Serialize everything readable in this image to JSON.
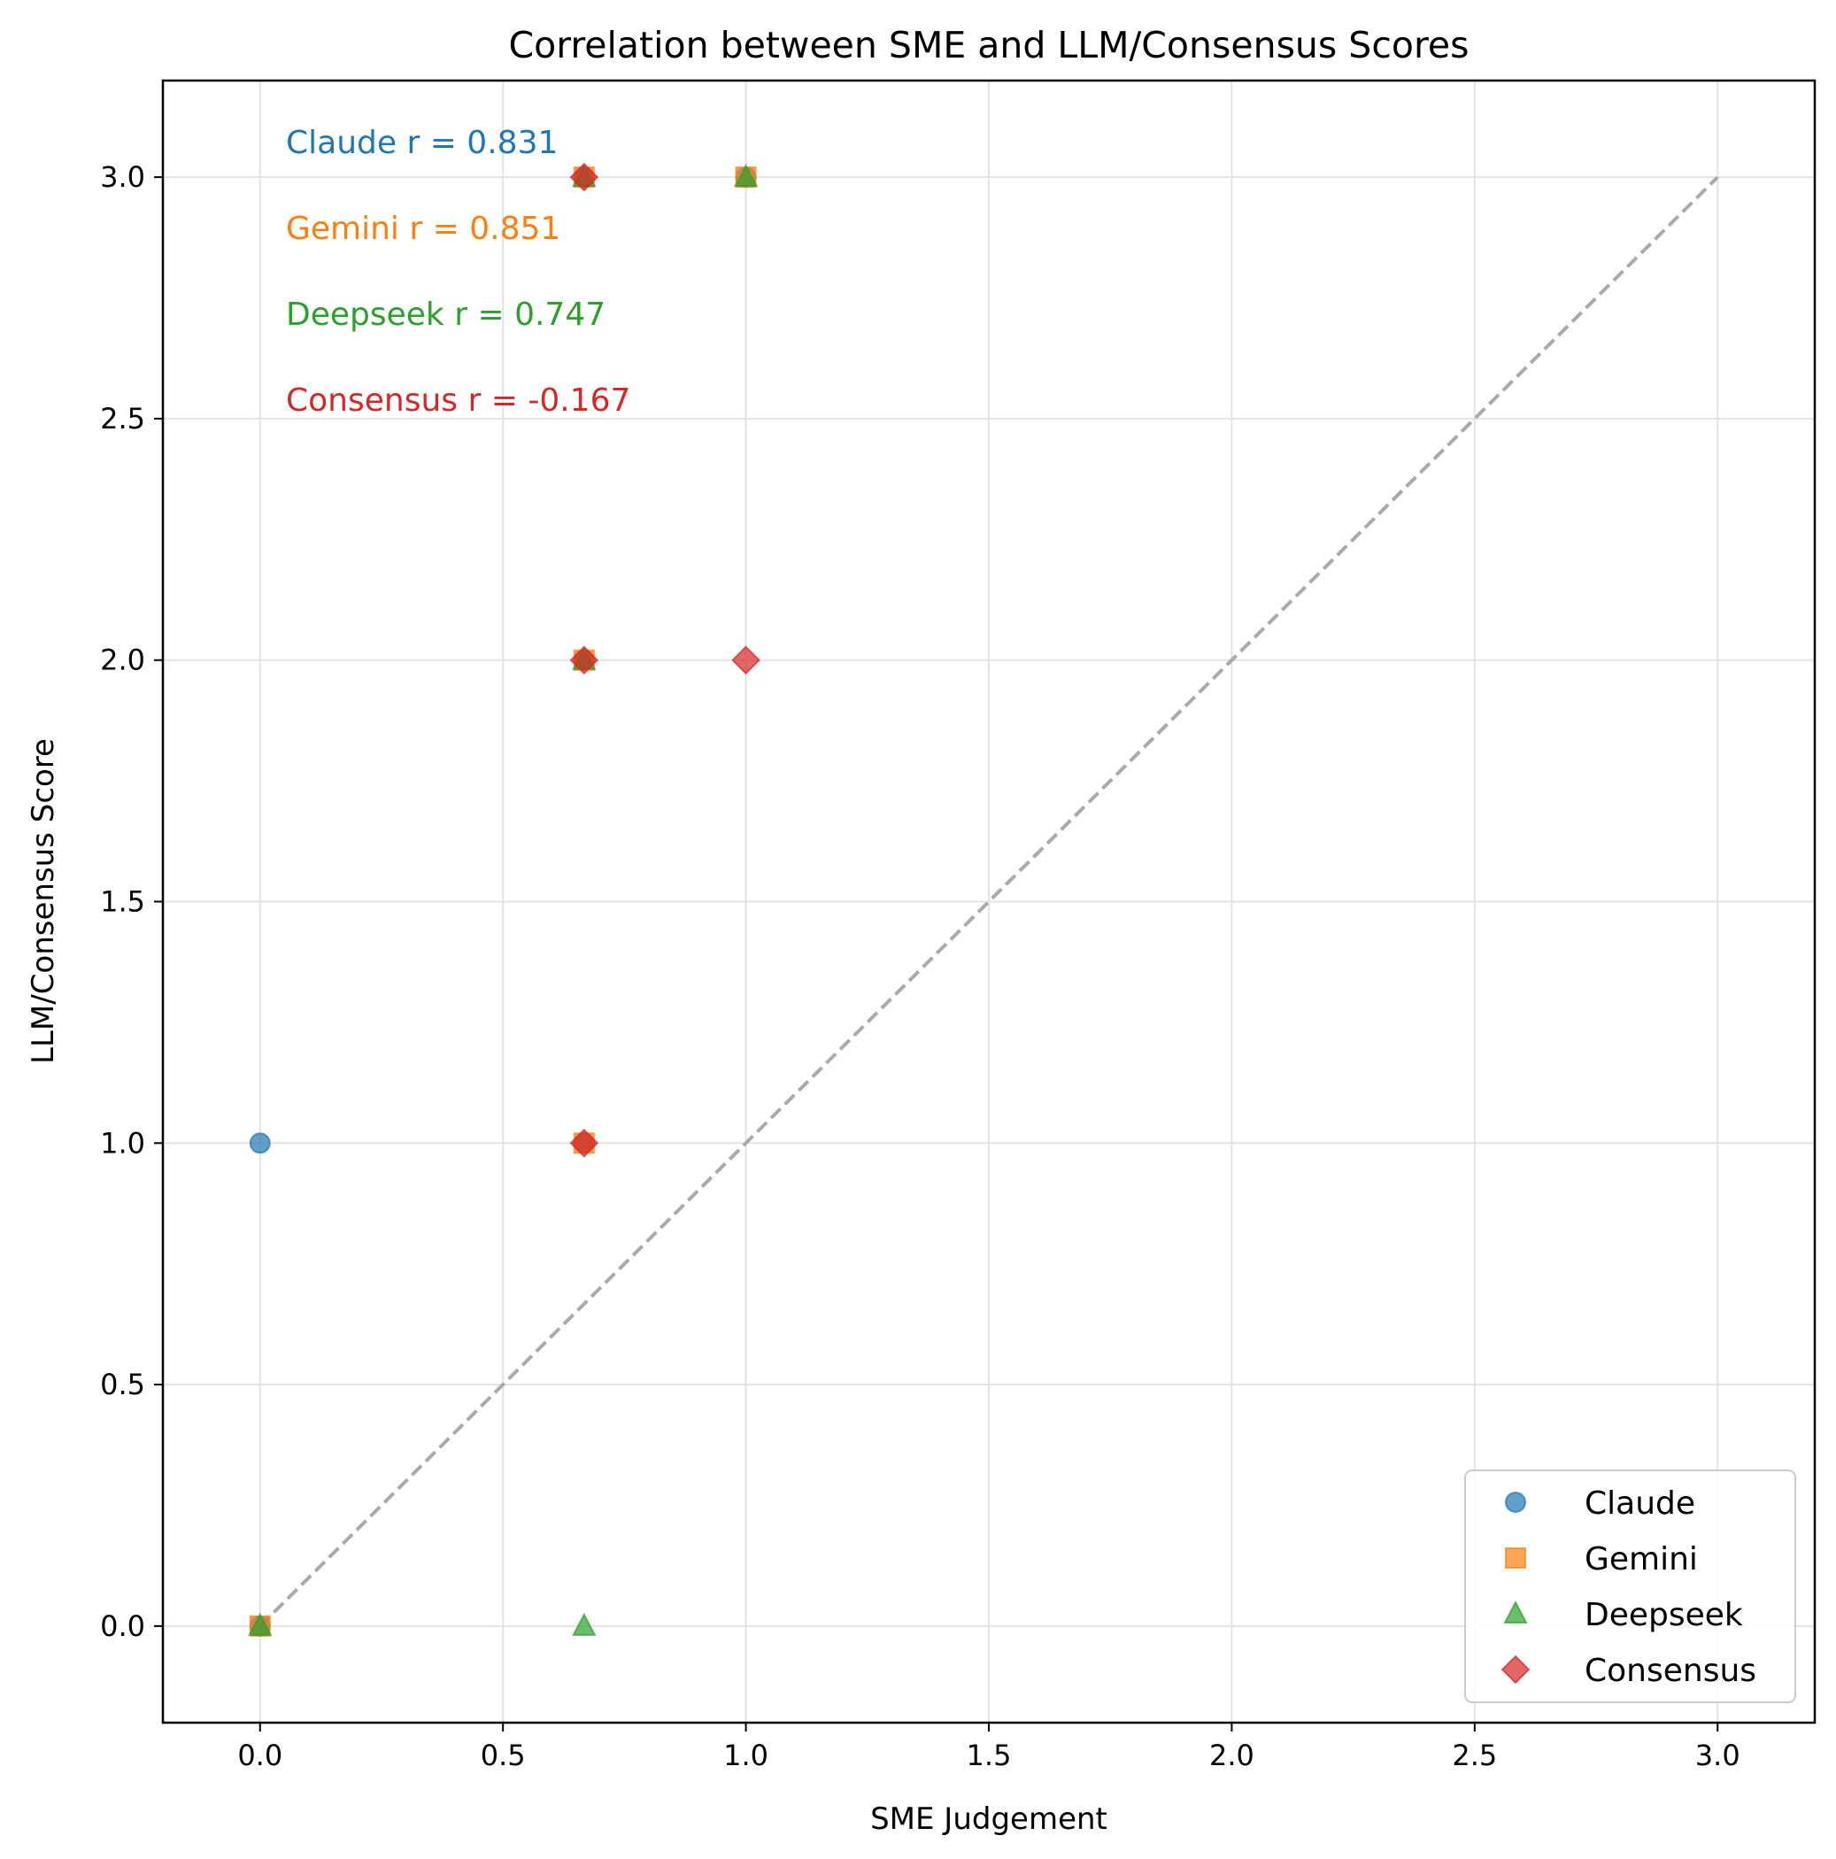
{
  "chart_data": {
    "type": "scatter",
    "title": "Correlation between SME and LLM/Consensus Scores",
    "xlabel": "SME Judgement",
    "ylabel": "LLM/Consensus Score",
    "xlim": [
      -0.2,
      3.2
    ],
    "ylim": [
      -0.2,
      3.2
    ],
    "xticks": [
      0.0,
      0.5,
      1.0,
      1.5,
      2.0,
      2.5,
      3.0
    ],
    "yticks": [
      0.0,
      0.5,
      1.0,
      1.5,
      2.0,
      2.5,
      3.0
    ],
    "xtick_labels": [
      "0.0",
      "0.5",
      "1.0",
      "1.5",
      "2.0",
      "2.5",
      "3.0"
    ],
    "ytick_labels": [
      "0.0",
      "0.5",
      "1.0",
      "1.5",
      "2.0",
      "2.5",
      "3.0"
    ],
    "grid": true,
    "legend_position": "bottom-right",
    "reference_line": {
      "style": "dashed",
      "color": "#aaaaaa",
      "points": [
        [
          0,
          0
        ],
        [
          3,
          3
        ]
      ]
    },
    "series": [
      {
        "name": "Claude",
        "marker": "circle",
        "color": "#1f77b4",
        "points": [
          [
            0,
            1
          ],
          [
            0,
            0
          ],
          [
            0.667,
            3
          ],
          [
            0.667,
            2
          ],
          [
            0.667,
            1
          ],
          [
            1,
            3
          ]
        ]
      },
      {
        "name": "Gemini",
        "marker": "square",
        "color": "#ff7f0e",
        "points": [
          [
            0,
            0
          ],
          [
            0.667,
            3
          ],
          [
            0.667,
            2
          ],
          [
            0.667,
            1
          ],
          [
            1,
            3
          ]
        ]
      },
      {
        "name": "Deepseek",
        "marker": "triangle",
        "color": "#2ca02c",
        "points": [
          [
            0,
            0
          ],
          [
            0.667,
            0
          ],
          [
            0.667,
            3
          ],
          [
            0.667,
            2
          ],
          [
            1,
            3
          ]
        ]
      },
      {
        "name": "Consensus",
        "marker": "diamond",
        "color": "#d62728",
        "points": [
          [
            0.667,
            3
          ],
          [
            0.667,
            2
          ],
          [
            0.667,
            1
          ],
          [
            1,
            2
          ]
        ]
      }
    ],
    "annotations": [
      {
        "text": "Claude r = 0.831",
        "color": "#1f77b4"
      },
      {
        "text": "Gemini r = 0.851",
        "color": "#ff7f0e"
      },
      {
        "text": "Deepseek r = 0.747",
        "color": "#2ca02c"
      },
      {
        "text": "Consensus r = -0.167",
        "color": "#d62728"
      }
    ]
  }
}
